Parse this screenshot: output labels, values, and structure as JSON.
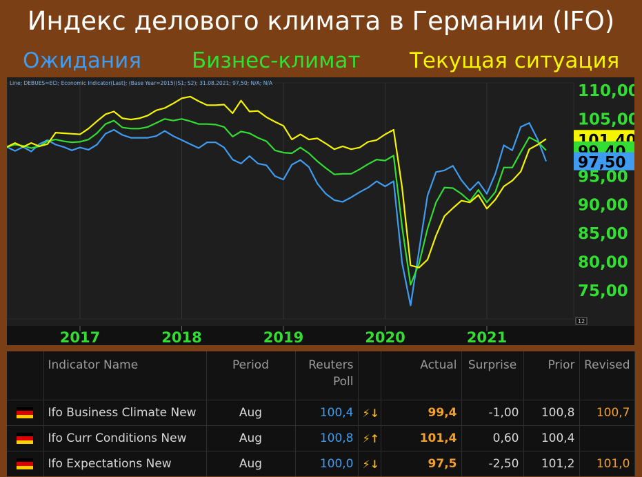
{
  "header": {
    "title": "Индекс делового климата в Германии (IFO)",
    "legend": [
      {
        "label": "Ожидания",
        "color": "#3f9cf0"
      },
      {
        "label": "Бизнес-климат",
        "color": "#33dd33"
      },
      {
        "label": "Текущая ситуация",
        "color": "#f5f500"
      }
    ]
  },
  "chart_data": {
    "type": "line",
    "info_text": "Line; DEBUES=ECI; Economic Indicator(Last); (Base Year=2015)(S1; S2); 31.08.2021; 97,50; N/A; N/A",
    "x_ticks": [
      "2017",
      "2018",
      "2019",
      "2020",
      "2021"
    ],
    "y_ticks": [
      "110,00",
      "105,00",
      "100,00",
      "95,00",
      "90,00",
      "85,00",
      "80,00",
      "75,00"
    ],
    "ylim": [
      70,
      112
    ],
    "value_tags": [
      {
        "label": "101,40",
        "value": 101.4,
        "bg": "#f5f500"
      },
      {
        "label": "99,40",
        "value": 99.4,
        "bg": "#33dd33"
      },
      {
        "label": "97,50",
        "value": 97.5,
        "bg": "#3f9cf0"
      }
    ],
    "axis_badge": "12",
    "x": [
      "2016-04",
      "2016-05",
      "2016-06",
      "2016-07",
      "2016-08",
      "2016-09",
      "2016-10",
      "2016-11",
      "2016-12",
      "2017-01",
      "2017-02",
      "2017-03",
      "2017-04",
      "2017-05",
      "2017-06",
      "2017-07",
      "2017-08",
      "2017-09",
      "2017-10",
      "2017-11",
      "2017-12",
      "2018-01",
      "2018-02",
      "2018-03",
      "2018-04",
      "2018-05",
      "2018-06",
      "2018-07",
      "2018-08",
      "2018-09",
      "2018-10",
      "2018-11",
      "2018-12",
      "2019-01",
      "2019-02",
      "2019-03",
      "2019-04",
      "2019-05",
      "2019-06",
      "2019-07",
      "2019-08",
      "2019-09",
      "2019-10",
      "2019-11",
      "2019-12",
      "2020-01",
      "2020-02",
      "2020-03",
      "2020-04",
      "2020-05",
      "2020-06",
      "2020-07",
      "2020-08",
      "2020-09",
      "2020-10",
      "2020-11",
      "2020-12",
      "2021-01",
      "2021-02",
      "2021-03",
      "2021-04",
      "2021-05",
      "2021-06",
      "2021-07",
      "2021-08"
    ],
    "series": [
      {
        "name": "Ожидания",
        "color": "#3f9cf0",
        "values": [
          100.0,
          99.3,
          100.0,
          99.2,
          100.5,
          101.2,
          100.4,
          100.0,
          99.4,
          99.9,
          99.5,
          100.4,
          102.3,
          103.0,
          102.1,
          101.6,
          101.6,
          101.6,
          101.9,
          102.8,
          101.9,
          101.2,
          100.5,
          99.8,
          100.8,
          100.8,
          99.9,
          97.8,
          97.1,
          98.4,
          97.1,
          96.8,
          94.9,
          94.3,
          96.9,
          97.7,
          96.5,
          93.6,
          91.8,
          90.7,
          90.4,
          91.2,
          92.1,
          92.9,
          94.0,
          93.1,
          94.0,
          79.7,
          72.3,
          81.9,
          91.5,
          95.6,
          95.9,
          96.7,
          94.2,
          92.4,
          93.9,
          91.8,
          95.3,
          100.3,
          99.4,
          103.5,
          104.2,
          101.3,
          97.5
        ]
      },
      {
        "name": "Бизнес-климат",
        "color": "#33dd33",
        "values": [
          100.0,
          100.4,
          100.2,
          99.8,
          100.1,
          101.0,
          101.3,
          101.0,
          100.8,
          100.9,
          101.3,
          102.4,
          104.0,
          104.6,
          103.4,
          103.2,
          103.2,
          103.5,
          104.2,
          104.9,
          104.6,
          104.9,
          104.5,
          104.0,
          104.0,
          103.9,
          103.5,
          101.8,
          102.7,
          102.4,
          101.6,
          101.0,
          99.4,
          99.0,
          98.9,
          99.9,
          98.9,
          97.5,
          96.3,
          95.2,
          95.3,
          95.3,
          96.1,
          97.0,
          97.8,
          97.6,
          98.5,
          86.0,
          75.9,
          79.6,
          85.7,
          90.3,
          92.9,
          92.8,
          91.8,
          90.5,
          92.5,
          90.3,
          92.1,
          96.4,
          96.4,
          99.1,
          101.7,
          100.9,
          99.4
        ]
      },
      {
        "name": "Текущая ситуация",
        "color": "#f5f500",
        "values": [
          100.0,
          100.7,
          100.0,
          100.7,
          100.1,
          100.5,
          102.5,
          102.4,
          102.3,
          102.2,
          103.2,
          104.5,
          105.7,
          106.2,
          105.0,
          104.8,
          105.0,
          105.5,
          106.4,
          106.8,
          107.6,
          108.5,
          108.8,
          108.0,
          107.3,
          107.3,
          107.4,
          105.9,
          108.1,
          106.2,
          106.3,
          105.2,
          104.4,
          103.7,
          101.3,
          102.2,
          101.3,
          101.5,
          100.6,
          99.6,
          100.1,
          99.6,
          99.9,
          100.9,
          101.2,
          102.2,
          103.0,
          92.9,
          79.3,
          78.9,
          80.3,
          84.5,
          87.9,
          89.3,
          90.6,
          90.3,
          91.6,
          89.2,
          90.8,
          93.1,
          94.1,
          95.7,
          99.6,
          100.4,
          101.4
        ]
      }
    ]
  },
  "table": {
    "headers": {
      "flag": "",
      "name": "Indicator Name",
      "period": "Period",
      "poll_line1": "Reuters",
      "poll_line2": "Poll",
      "arrow": "",
      "actual": "Actual",
      "surprise": "Surprise",
      "prior": "Prior",
      "revised": "Revised"
    },
    "rows": [
      {
        "name": "Ifo Business Climate New",
        "period": "Aug",
        "poll": "100,4",
        "arrow": "⚡↓",
        "actual": "99,4",
        "surprise": "-1,00",
        "prior": "100,8",
        "revised": "100,7"
      },
      {
        "name": "Ifo Curr Conditions New",
        "period": "Aug",
        "poll": "100,8",
        "arrow": "⚡↑",
        "actual": "101,4",
        "surprise": "0,60",
        "prior": "100,4",
        "revised": ""
      },
      {
        "name": "Ifo Expectations New",
        "period": "Aug",
        "poll": "100,0",
        "arrow": "⚡↓",
        "actual": "97,5",
        "surprise": "-2,50",
        "prior": "101,2",
        "revised": "101,0"
      }
    ],
    "flag_colors": [
      "#000000",
      "#dd0000",
      "#ffce00"
    ]
  }
}
